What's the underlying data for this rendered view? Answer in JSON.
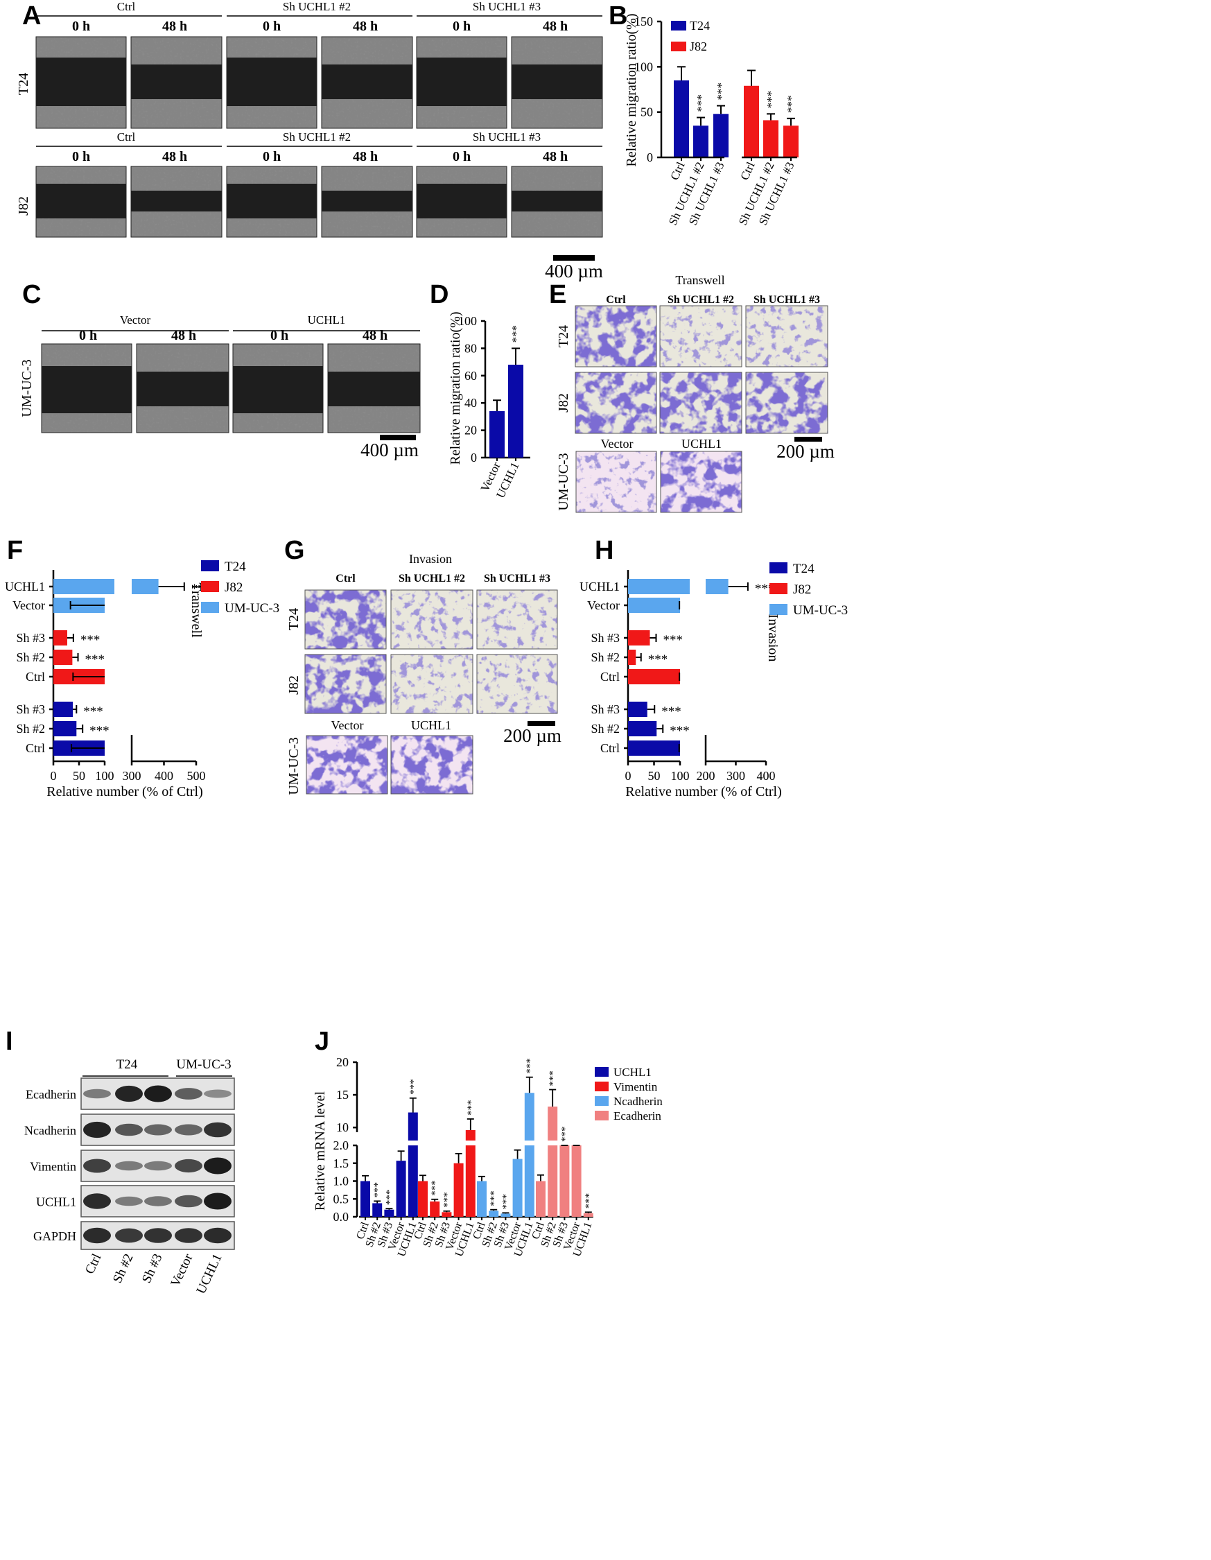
{
  "panels": {
    "A": {
      "letter": "A",
      "groups": [
        "Ctrl",
        "Sh UCHL1 #2",
        "Sh UCHL1 #3"
      ],
      "times": [
        "0 h",
        "48 h"
      ],
      "rows": [
        "T24",
        "J82"
      ],
      "scale_bar": "400 µm"
    },
    "B": {
      "letter": "B"
    },
    "C": {
      "letter": "C",
      "groups": [
        "Vector",
        "UCHL1"
      ],
      "times": [
        "0 h",
        "48 h"
      ],
      "row": "UM-UC-3",
      "scale_bar": "400 µm"
    },
    "D": {
      "letter": "D"
    },
    "E": {
      "letter": "E",
      "title": "Transwell",
      "cols": [
        "Ctrl",
        "Sh UCHL1 #2",
        "Sh UCHL1 #3"
      ],
      "rows": [
        "T24",
        "J82",
        "UM-UC-3"
      ],
      "um_cols": [
        "Vector",
        "UCHL1"
      ],
      "scale_bar": "200 µm"
    },
    "F": {
      "letter": "F",
      "side_label": "Transwell"
    },
    "G": {
      "letter": "G",
      "title": "Invasion",
      "cols": [
        "Ctrl",
        "Sh UCHL1 #2",
        "Sh UCHL1 #3"
      ],
      "rows": [
        "T24",
        "J82",
        "UM-UC-3"
      ],
      "um_cols": [
        "Vector",
        "UCHL1"
      ],
      "scale_bar": "200 µm"
    },
    "H": {
      "letter": "H",
      "side_label": "Invasion"
    },
    "I": {
      "letter": "I",
      "groups": [
        "T24",
        "UM-UC-3"
      ],
      "bands": [
        "Ecadherin",
        "Ncadherin",
        "Vimentin",
        "UCHL1",
        "GAPDH"
      ],
      "lanes": [
        "Ctrl",
        "Sh #2",
        "Sh #3",
        "Vector",
        "UCHL1"
      ]
    },
    "J": {
      "letter": "J"
    }
  },
  "colors": {
    "t24": "#0a0aa8",
    "j82": "#f01818",
    "umuc3": "#5aa6ee",
    "ecad": "#f08080"
  },
  "chart_data": [
    {
      "id": "B",
      "type": "bar",
      "ylabel": "Relative  migration ratio(%)",
      "ylim": [
        0,
        150
      ],
      "yticks": [
        0,
        50,
        100,
        150
      ],
      "legend": "top-right",
      "series": [
        {
          "name": "T24",
          "color": "#0a0aa8",
          "categories": [
            "Ctrl",
            "Sh UCHL1 #2",
            "Sh UCHL1 #3"
          ],
          "values": [
            85,
            35,
            48
          ],
          "errors": [
            15,
            9,
            9
          ],
          "sig": [
            "",
            "***",
            "***"
          ]
        },
        {
          "name": "J82",
          "color": "#f01818",
          "categories": [
            "Ctrl",
            "Sh UCHL1 #2",
            "Sh UCHL1 #3"
          ],
          "values": [
            79,
            41,
            35
          ],
          "errors": [
            17,
            7,
            8
          ],
          "sig": [
            "",
            "***",
            "***"
          ]
        }
      ]
    },
    {
      "id": "D",
      "type": "bar",
      "ylabel": "Relative  migration ratio(%)",
      "ylim": [
        0,
        100
      ],
      "yticks": [
        0,
        20,
        40,
        60,
        80,
        100
      ],
      "categories": [
        "Vector",
        "UCHL1"
      ],
      "values": [
        34,
        68
      ],
      "errors": [
        8,
        12
      ],
      "sig": [
        "",
        "***"
      ],
      "color": "#0a0aa8"
    },
    {
      "id": "F",
      "type": "bar",
      "orientation": "horizontal",
      "xlabel": "Relative number (% of Ctrl)",
      "xticks_left": [
        0,
        50,
        100
      ],
      "xticks_right": [
        300,
        400,
        500
      ],
      "legend": [
        "T24",
        "J82",
        "UM-UC-3"
      ],
      "rows": [
        {
          "label": "UCHL1",
          "value": 383,
          "error": 80,
          "sig": "***",
          "color": "#5aa6ee"
        },
        {
          "label": "Vector",
          "value": 100,
          "error": 10,
          "sig": "",
          "color": "#5aa6ee"
        },
        {
          "label": "Sh #3",
          "value": 27,
          "error": 12,
          "sig": "***",
          "color": "#f01818"
        },
        {
          "label": "Sh #2",
          "value": 37,
          "error": 11,
          "sig": "***",
          "color": "#f01818"
        },
        {
          "label": "Ctrl",
          "value": 100,
          "error": 18,
          "sig": "",
          "color": "#f01818"
        },
        {
          "label": "Sh #3",
          "value": 38,
          "error": 7,
          "sig": "***",
          "color": "#0a0aa8"
        },
        {
          "label": "Sh #2",
          "value": 45,
          "error": 12,
          "sig": "***",
          "color": "#0a0aa8"
        },
        {
          "label": "Ctrl",
          "value": 100,
          "error": 13,
          "sig": "",
          "color": "#0a0aa8"
        }
      ]
    },
    {
      "id": "H",
      "type": "bar",
      "orientation": "horizontal",
      "xlabel": "Relative number (% of Ctrl)",
      "xticks_left": [
        0,
        50,
        100
      ],
      "xticks_right": [
        200,
        300,
        400
      ],
      "legend": [
        "T24",
        "J82",
        "UM-UC-3"
      ],
      "rows": [
        {
          "label": "UCHL1",
          "value": 275,
          "error": 65,
          "sig": "***",
          "color": "#5aa6ee"
        },
        {
          "label": "Vector",
          "value": 100,
          "error": 13,
          "sig": "",
          "color": "#5aa6ee"
        },
        {
          "label": "Sh #3",
          "value": 42,
          "error": 12,
          "sig": "***",
          "color": "#f01818"
        },
        {
          "label": "Sh #2",
          "value": 15,
          "error": 10,
          "sig": "***",
          "color": "#f01818"
        },
        {
          "label": "Ctrl",
          "value": 100,
          "error": 13,
          "sig": "",
          "color": "#f01818"
        },
        {
          "label": "Sh #3",
          "value": 37,
          "error": 14,
          "sig": "***",
          "color": "#0a0aa8"
        },
        {
          "label": "Sh #2",
          "value": 55,
          "error": 12,
          "sig": "***",
          "color": "#0a0aa8"
        },
        {
          "label": "Ctrl",
          "value": 100,
          "error": 12,
          "sig": "",
          "color": "#0a0aa8"
        }
      ]
    },
    {
      "id": "J",
      "type": "bar",
      "ylabel": "Relative mRNA level",
      "yticks_low": [
        "0.0",
        "0.5",
        "1.0",
        "1.5",
        "2.0"
      ],
      "yticks_high": [
        "10",
        "15",
        "20"
      ],
      "legend": [
        "UCHL1",
        "Vimentin",
        "Ncadherin",
        "Ecadherin"
      ],
      "groups": [
        {
          "name": "UCHL1",
          "color": "#0a0aa8",
          "categories": [
            "Ctrl",
            "Sh #2",
            "Sh #3",
            "Vector",
            "UCHL1"
          ],
          "values": [
            1.0,
            0.38,
            0.2,
            1.57,
            12.3
          ],
          "errors": [
            0.15,
            0.06,
            0.03,
            0.27,
            2.2
          ],
          "sig": [
            "",
            "***",
            "***",
            "",
            "***"
          ]
        },
        {
          "name": "Vimentin",
          "color": "#f01818",
          "categories": [
            "Ctrl",
            "Sh #2",
            "Sh #3",
            "Vector",
            "UCHL1"
          ],
          "values": [
            1.0,
            0.43,
            0.13,
            1.5,
            9.6
          ],
          "errors": [
            0.16,
            0.06,
            0.03,
            0.27,
            1.7
          ],
          "sig": [
            "",
            "***",
            "***",
            "",
            "***"
          ]
        },
        {
          "name": "Ncadherin",
          "color": "#5aa6ee",
          "categories": [
            "Ctrl",
            "Sh #2",
            "Sh #3",
            "Vector",
            "UCHL1"
          ],
          "values": [
            1.0,
            0.17,
            0.09,
            1.62,
            15.3
          ],
          "errors": [
            0.13,
            0.03,
            0.02,
            0.25,
            2.4
          ],
          "sig": [
            "",
            "***",
            "***",
            "",
            "***"
          ]
        },
        {
          "name": "Ecadherin",
          "color": "#f08080",
          "categories": [
            "Ctrl",
            "Sh #2",
            "Sh #3",
            "Vector",
            "UCHL1"
          ],
          "values": [
            1.0,
            13.2,
            7.0,
            6.7,
            0.1
          ],
          "errors": [
            0.17,
            2.6,
            0.9,
            0.9,
            0.03
          ],
          "sig": [
            "",
            "***",
            "***",
            "",
            "***"
          ]
        }
      ]
    }
  ]
}
